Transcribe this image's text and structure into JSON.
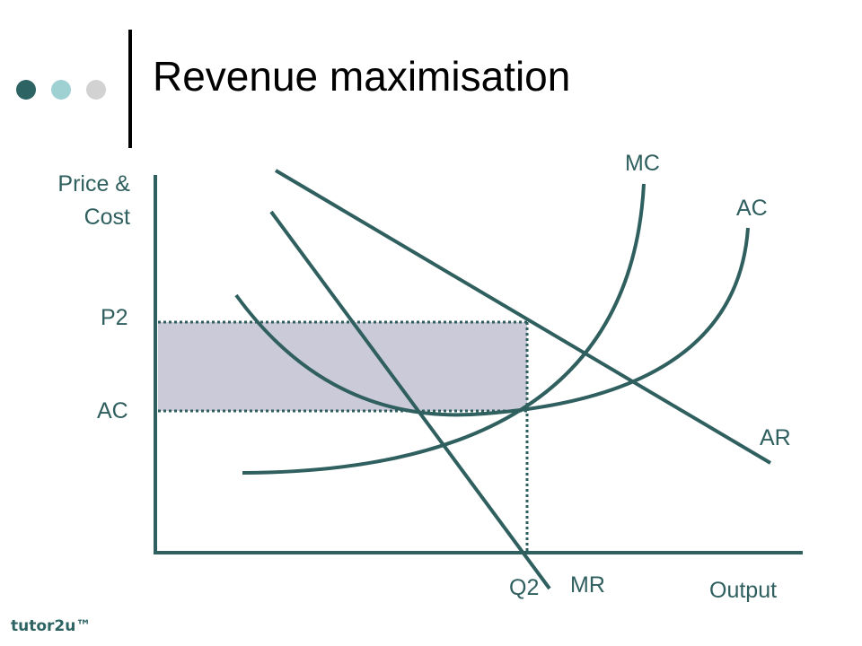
{
  "title": "Revenue maximisation",
  "colors": {
    "curve": "#2f5f5e",
    "shaded_area": "#cbcad9",
    "dot_1": "#2e6363",
    "dot_2": "#9fd0d2",
    "dot_3": "#d2d2d2"
  },
  "labels": {
    "y_axis_line1": "Price &",
    "y_axis_line2": "Cost",
    "x_axis": "Output",
    "p2": "P2",
    "ac_level": "AC",
    "q2": "Q2",
    "mc": "MC",
    "ac_curve": "AC",
    "ar": "AR",
    "mr": "MR"
  },
  "brand": "tutor2u™"
}
